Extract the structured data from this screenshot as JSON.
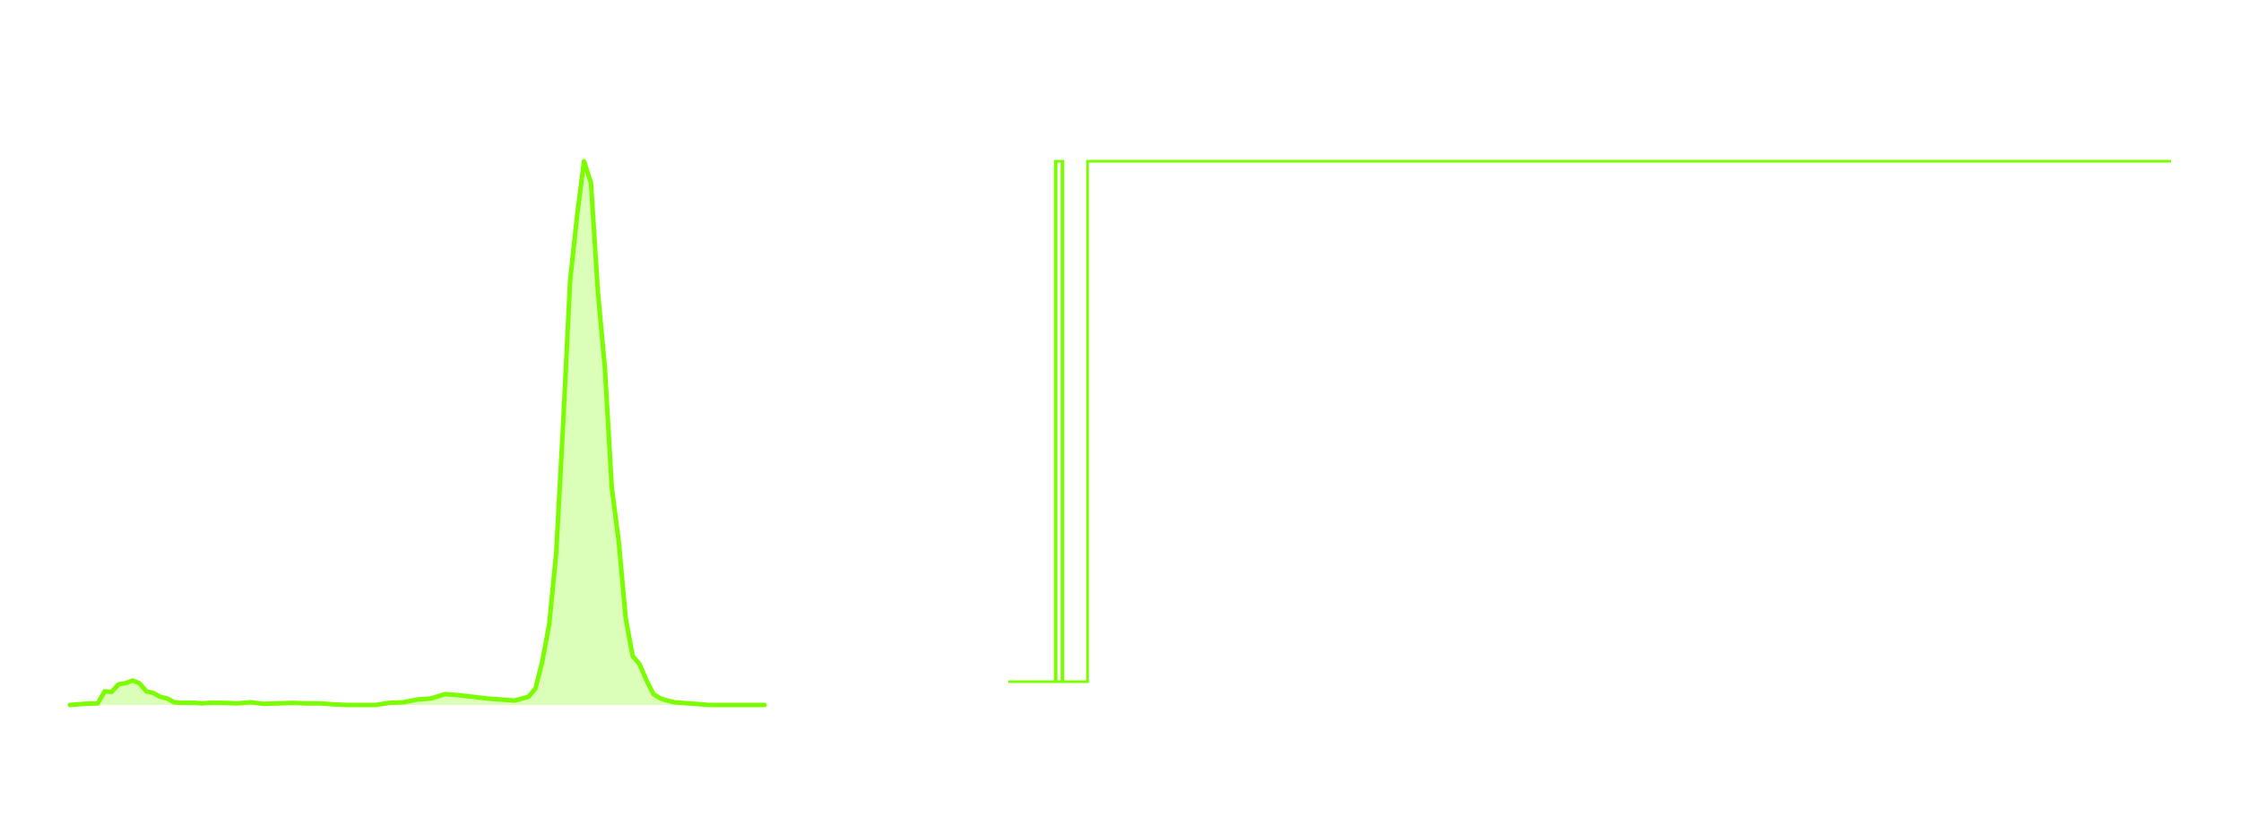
{
  "colors": {
    "series": "#7cfc00",
    "background": "#ffffff"
  },
  "chart_data": [
    {
      "type": "area",
      "title": "",
      "xlabel": "",
      "ylabel": "",
      "grid": false,
      "legend": "none",
      "xlim": [
        0,
        100
      ],
      "ylim": [
        0,
        1
      ],
      "x": [
        0,
        2,
        4,
        5,
        6,
        7,
        8,
        9,
        10,
        11,
        12,
        13,
        14,
        15,
        16,
        17,
        18,
        19,
        20,
        22,
        24,
        26,
        28,
        30,
        32,
        34,
        36,
        38,
        40,
        42,
        44,
        46,
        48,
        50,
        52,
        54,
        56,
        58,
        60,
        62,
        64,
        66,
        67,
        68,
        69,
        70,
        71,
        72,
        73,
        74,
        75,
        76,
        77,
        78,
        79,
        80,
        81,
        82,
        83,
        84,
        85,
        86,
        87,
        88,
        89,
        90,
        91,
        92,
        93,
        94,
        96,
        98,
        100
      ],
      "y": [
        0.0,
        0.002,
        0.003,
        0.025,
        0.024,
        0.038,
        0.04,
        0.045,
        0.04,
        0.025,
        0.022,
        0.015,
        0.012,
        0.005,
        0.004,
        0.004,
        0.004,
        0.003,
        0.004,
        0.004,
        0.003,
        0.005,
        0.002,
        0.003,
        0.004,
        0.003,
        0.003,
        0.001,
        0.0,
        0.0,
        0.0,
        0.004,
        0.005,
        0.01,
        0.012,
        0.02,
        0.018,
        0.015,
        0.012,
        0.01,
        0.008,
        0.015,
        0.03,
        0.08,
        0.15,
        0.28,
        0.52,
        0.78,
        0.9,
        1.0,
        0.96,
        0.76,
        0.62,
        0.4,
        0.3,
        0.16,
        0.09,
        0.075,
        0.045,
        0.02,
        0.012,
        0.008,
        0.005,
        0.004,
        0.003,
        0.002,
        0.001,
        0.0,
        0.0,
        0.0,
        0.0,
        0.0,
        0.0
      ]
    },
    {
      "type": "line",
      "title": "",
      "xlabel": "",
      "ylabel": "",
      "grid": false,
      "legend": "none",
      "xlim": [
        0,
        100
      ],
      "ylim": [
        0,
        1
      ],
      "step": true,
      "x": [
        0,
        4.1,
        4.1,
        4.6,
        4.6,
        6.8,
        6.8,
        100
      ],
      "y": [
        0,
        0,
        1,
        1,
        0,
        0,
        1,
        1
      ]
    }
  ]
}
